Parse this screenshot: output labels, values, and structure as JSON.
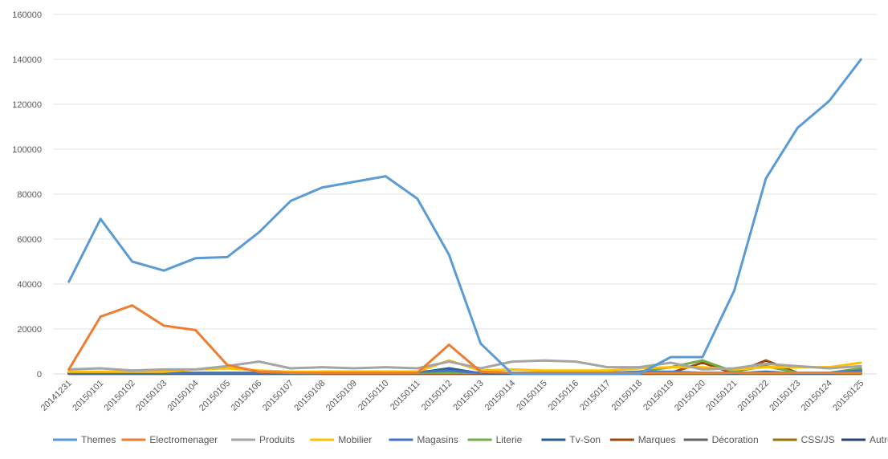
{
  "chart_data": {
    "type": "line",
    "title": "",
    "xlabel": "",
    "ylabel": "",
    "ylim": [
      0,
      160000
    ],
    "yticks": [
      "0",
      "20000",
      "40000",
      "60000",
      "80000",
      "100000",
      "120000",
      "140000",
      "160000"
    ],
    "grid": true,
    "legend_position": "bottom",
    "categories": [
      "20141231",
      "20150101",
      "20150102",
      "20150103",
      "20150104",
      "20150105",
      "20150106",
      "20150107",
      "20150108",
      "20150109",
      "20150110",
      "20150111",
      "20150112",
      "20150113",
      "20150114",
      "20150115",
      "20150116",
      "20150117",
      "20150118",
      "20150119",
      "20150120",
      "20150121",
      "20150122",
      "20150123",
      "20150124",
      "20150125"
    ],
    "series": [
      {
        "name": "Themes",
        "color": "#5B9BD5",
        "values": [
          41000,
          69000,
          50000,
          46000,
          51500,
          52000,
          63000,
          77000,
          83000,
          85500,
          88000,
          78000,
          53000,
          13500,
          0,
          0,
          0,
          0,
          0,
          7500,
          7500,
          37000,
          87000,
          109500,
          121500,
          140000
        ]
      },
      {
        "name": "Electromenager",
        "color": "#ED7D31",
        "values": [
          2000,
          25500,
          30500,
          21500,
          19500,
          4000,
          1000,
          500,
          500,
          500,
          500,
          500,
          13000,
          1000,
          500,
          500,
          500,
          500,
          500,
          500,
          500,
          500,
          500,
          500,
          500,
          500
        ]
      },
      {
        "name": "Produits",
        "color": "#A5A5A5",
        "values": [
          2000,
          2500,
          1500,
          2000,
          2000,
          3500,
          5500,
          2500,
          3000,
          2500,
          3000,
          2500,
          5500,
          2500,
          5500,
          6000,
          5500,
          3000,
          3000,
          5000,
          2000,
          2500,
          4500,
          3500,
          2500,
          3500
        ]
      },
      {
        "name": "Mobilier",
        "color": "#FFC000",
        "values": [
          1000,
          1000,
          1000,
          1000,
          2000,
          2500,
          1500,
          1000,
          1000,
          1000,
          1000,
          1000,
          6000,
          1500,
          2000,
          1500,
          1500,
          1500,
          2500,
          3000,
          3000,
          2000,
          3000,
          3000,
          3000,
          5000
        ]
      },
      {
        "name": "Magasins",
        "color": "#4472C4",
        "values": [
          500,
          500,
          500,
          500,
          500,
          500,
          500,
          500,
          1000,
          1000,
          1000,
          1000,
          1500,
          500,
          500,
          500,
          500,
          500,
          1000,
          1000,
          500,
          500,
          500,
          500,
          500,
          1500
        ]
      },
      {
        "name": "Literie",
        "color": "#70AD47",
        "values": [
          500,
          500,
          500,
          500,
          500,
          500,
          500,
          500,
          500,
          500,
          500,
          500,
          500,
          500,
          500,
          500,
          500,
          500,
          1000,
          3000,
          6000,
          1000,
          3500,
          500,
          500,
          2500
        ]
      },
      {
        "name": "Tv-Son",
        "color": "#255E91",
        "values": [
          200,
          200,
          200,
          200,
          200,
          200,
          200,
          200,
          500,
          500,
          500,
          500,
          2500,
          200,
          200,
          200,
          200,
          200,
          500,
          500,
          500,
          200,
          1000,
          200,
          200,
          1000
        ]
      },
      {
        "name": "Marques",
        "color": "#9E480E",
        "values": [
          200,
          200,
          200,
          200,
          200,
          200,
          200,
          1000,
          200,
          200,
          200,
          200,
          200,
          200,
          200,
          200,
          200,
          200,
          200,
          500,
          5000,
          200,
          6000,
          500,
          500,
          2000
        ]
      },
      {
        "name": "Décoration",
        "color": "#636363",
        "values": [
          200,
          200,
          200,
          200,
          200,
          200,
          200,
          200,
          200,
          200,
          200,
          200,
          200,
          200,
          200,
          200,
          200,
          200,
          200,
          500,
          500,
          200,
          500,
          200,
          200,
          500
        ]
      },
      {
        "name": "CSS/JS",
        "color": "#997300",
        "values": [
          100,
          100,
          100,
          100,
          100,
          100,
          100,
          100,
          100,
          100,
          100,
          100,
          100,
          100,
          100,
          100,
          100,
          100,
          100,
          100,
          100,
          100,
          100,
          100,
          100,
          100
        ]
      },
      {
        "name": "Autres",
        "color": "#264478",
        "values": [
          100,
          100,
          100,
          100,
          100,
          100,
          100,
          100,
          100,
          100,
          100,
          100,
          100,
          100,
          100,
          100,
          100,
          100,
          100,
          100,
          100,
          100,
          100,
          100,
          100,
          100
        ]
      }
    ]
  }
}
